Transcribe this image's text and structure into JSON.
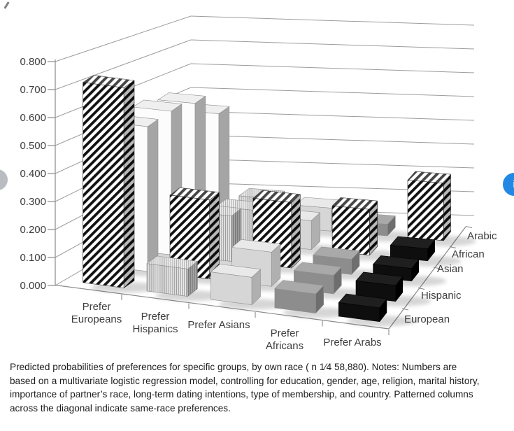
{
  "caption": {
    "full": "Predicted probabilities of preferences for specific groups, by own race ( n 1⁄4 58,880). Notes: Numbers are based on a multivariate logistic regression model, controlling for education, gender, age, religion, marital history, importance of partner’s race, long-term dating intentions, type of membership, and country. Patterned columns across the diagonal indicate same-race preferences.",
    "lines": [
      "Predicted probabilities of preferences for specific groups, by own race ( n 1⁄4 58,880). Notes: Numbers are",
      "based on a multivariate logistic regression model, controlling for education, gender, age, religion, marital history,",
      "importance of partner’s race, long-term dating intentions, type of membership, and country. Patterned columns",
      "across the diagonal indicate same-race preferences."
    ]
  },
  "widgets": {
    "prev_button": {
      "shape": "half-circle",
      "color": "#b9bdc2",
      "label": ""
    },
    "next_button": {
      "shape": "circle",
      "color": "#2288e3",
      "glyph": "i",
      "glyph_color": "#ffffff"
    }
  },
  "chart_data": {
    "type": "bar",
    "subtype": "3d-column",
    "title": "",
    "categories": [
      "Prefer Europeans",
      "Prefer Hispanics",
      "Prefer Asians",
      "Prefer Africans",
      "Prefer Arabs"
    ],
    "category_label_lines": [
      [
        "Prefer",
        "Europeans"
      ],
      [
        "Prefer",
        "Hispanics"
      ],
      [
        "Prefer Asians"
      ],
      [
        "Prefer",
        "Africans"
      ],
      [
        "Prefer Arabs"
      ]
    ],
    "series": [
      {
        "name": "European",
        "own_race": true,
        "values": [
          0.73,
          0.1,
          0.1,
          0.07,
          0.05
        ]
      },
      {
        "name": "Hispanic",
        "own_race": true,
        "values": [
          0.55,
          0.3,
          0.13,
          0.07,
          0.06
        ]
      },
      {
        "name": "Asian",
        "own_race": true,
        "values": [
          0.57,
          0.18,
          0.26,
          0.06,
          0.05
        ]
      },
      {
        "name": "African",
        "own_race": true,
        "values": [
          0.56,
          0.14,
          0.12,
          0.19,
          0.05
        ]
      },
      {
        "name": "Arabic",
        "own_race": true,
        "values": [
          0.47,
          0.12,
          0.1,
          0.05,
          0.25
        ]
      }
    ],
    "value_axis": {
      "min": 0,
      "max": 0.8,
      "step": 0.1,
      "tick_labels_top_down": [
        "0.800",
        "0.700",
        "0.600",
        "0.500",
        "0.400",
        "0.300",
        "0.200",
        "0.100",
        "0.000"
      ]
    },
    "depth_axis_labels_front_to_back": [
      "European",
      "Hispanic",
      "Asian",
      "African",
      "Arabic"
    ],
    "notes": "Patterned (bold diagonal striped) columns across the diagonal indicate same-race preferences.",
    "grid": "horizontal gridlines on left and back walls",
    "legend_position": "depth axis, right side",
    "category_fills": [
      {
        "style": "solid",
        "front": "#fcfcfc",
        "top": "#efefef",
        "side": "#a5a5a5"
      },
      {
        "style": "fine-vertical-stripes",
        "front": "#e9e9e9",
        "stripe": "#999999"
      },
      {
        "style": "solid",
        "front": "#d6d6d6",
        "top": "#e9e9e9",
        "side": "#b0b0b0"
      },
      {
        "style": "solid",
        "front": "#8d8d8d",
        "top": "#a9a9a9",
        "side": "#6e6e6e"
      },
      {
        "style": "solid",
        "front": "#0e0e0e",
        "top": "#1f1f1f",
        "side": "#000000"
      }
    ],
    "diagonal_fill": {
      "style": "bold-diagonal-stripes",
      "colors": [
        "#111111",
        "#ffffff"
      ]
    }
  }
}
